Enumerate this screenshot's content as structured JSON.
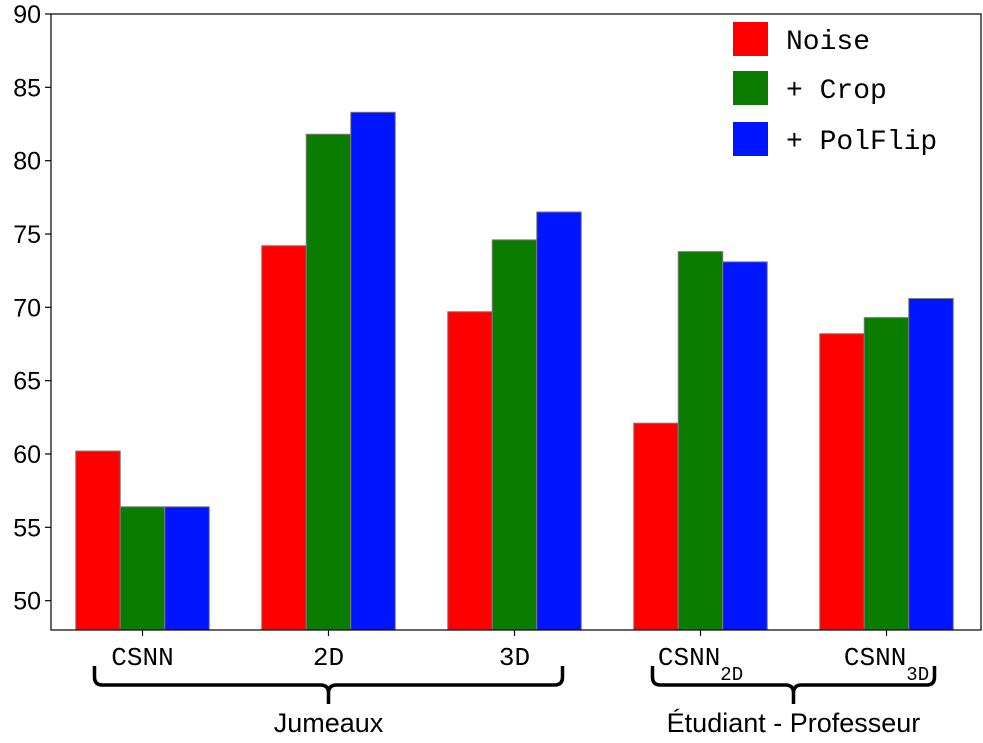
{
  "chart_data": {
    "type": "bar",
    "categories": [
      {
        "main": "CSNN",
        "sub": ""
      },
      {
        "main": "2D",
        "sub": ""
      },
      {
        "main": "3D",
        "sub": ""
      },
      {
        "main": "CSNN",
        "sub": "2D"
      },
      {
        "main": "CSNN",
        "sub": "3D"
      }
    ],
    "series": [
      {
        "name": "Noise",
        "color": "#ff0000",
        "values": [
          60.2,
          74.2,
          69.7,
          62.1,
          68.2
        ]
      },
      {
        "name": "+ Crop",
        "color": "#0a7d00",
        "values": [
          56.4,
          81.8,
          74.6,
          73.8,
          69.3
        ]
      },
      {
        "name": "+ PolFlip",
        "color": "#0015ff",
        "values": [
          56.4,
          83.3,
          76.5,
          73.1,
          70.6
        ]
      }
    ],
    "ylim": [
      48,
      90
    ],
    "yticks": [
      50,
      55,
      60,
      65,
      70,
      75,
      80,
      85,
      90
    ],
    "grid": false,
    "legend_position": "top-right",
    "groups": [
      {
        "label": "Jumeaux",
        "categories": [
          0,
          1,
          2
        ]
      },
      {
        "label": "Étudiant - Professeur",
        "categories": [
          3,
          4
        ]
      }
    ],
    "xlabel": "",
    "ylabel": "",
    "title": ""
  }
}
